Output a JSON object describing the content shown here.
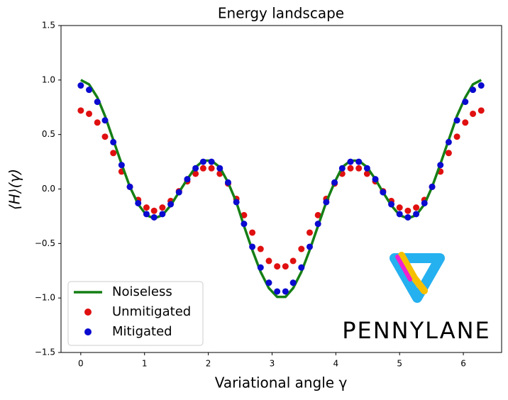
{
  "chart_data": {
    "type": "line",
    "title": "Energy landscape",
    "xlabel": "Variational angle γ",
    "ylabel": "⟨H⟩(γ)",
    "logo_text": "PENNYLANE",
    "legend": "lower left",
    "xlim": [
      -0.31,
      6.6
    ],
    "ylim": [
      -1.5,
      1.5
    ],
    "xticks": [
      0,
      1,
      2,
      3,
      4,
      5,
      6
    ],
    "yticks": [
      {
        "value": -1.5,
        "label": "−1.5"
      },
      {
        "value": -1.0,
        "label": "−1.0"
      },
      {
        "value": -0.5,
        "label": "−0.5"
      },
      {
        "value": 0,
        "label": "0.0"
      },
      {
        "value": 0.5,
        "label": "0.5"
      },
      {
        "value": 1.0,
        "label": "1.0"
      },
      {
        "value": 1.5,
        "label": "1.5"
      }
    ],
    "x": [
      0,
      0.13,
      0.26,
      0.38,
      0.51,
      0.64,
      0.77,
      0.9,
      1.03,
      1.15,
      1.28,
      1.41,
      1.54,
      1.67,
      1.8,
      1.92,
      2.05,
      2.18,
      2.31,
      2.44,
      2.56,
      2.69,
      2.82,
      2.95,
      3.08,
      3.21,
      3.33,
      3.46,
      3.59,
      3.72,
      3.85,
      3.98,
      4.1,
      4.23,
      4.36,
      4.49,
      4.62,
      4.74,
      4.87,
      5.0,
      5.13,
      5.26,
      5.39,
      5.51,
      5.64,
      5.77,
      5.9,
      6.03,
      6.15,
      6.28
    ],
    "series": [
      {
        "name": "Noiseless",
        "type": "line",
        "color": "#157f15",
        "values": [
          1.0,
          0.96,
          0.84,
          0.67,
          0.45,
          0.23,
          0.02,
          -0.14,
          -0.24,
          -0.27,
          -0.24,
          -0.15,
          -0.03,
          0.09,
          0.2,
          0.26,
          0.26,
          0.2,
          0.06,
          -0.12,
          -0.34,
          -0.56,
          -0.76,
          -0.91,
          -0.99,
          -0.99,
          -0.91,
          -0.76,
          -0.56,
          -0.34,
          -0.12,
          0.06,
          0.2,
          0.26,
          0.26,
          0.2,
          0.09,
          -0.03,
          -0.15,
          -0.24,
          -0.27,
          -0.24,
          -0.14,
          0.02,
          0.23,
          0.45,
          0.67,
          0.84,
          0.96,
          1.0
        ]
      },
      {
        "name": "Unmitigated",
        "type": "scatter",
        "color": "#e01010",
        "values": [
          0.72,
          0.69,
          0.61,
          0.48,
          0.33,
          0.16,
          0.02,
          -0.1,
          -0.17,
          -0.2,
          -0.17,
          -0.11,
          -0.02,
          0.07,
          0.14,
          0.19,
          0.19,
          0.14,
          0.05,
          -0.09,
          -0.24,
          -0.4,
          -0.55,
          -0.66,
          -0.71,
          -0.71,
          -0.66,
          -0.55,
          -0.4,
          -0.24,
          -0.09,
          0.05,
          0.14,
          0.19,
          0.19,
          0.14,
          0.07,
          -0.02,
          -0.11,
          -0.17,
          -0.2,
          -0.17,
          -0.1,
          0.02,
          0.16,
          0.33,
          0.48,
          0.61,
          0.69,
          0.72
        ]
      },
      {
        "name": "Mitigated",
        "type": "scatter",
        "color": "#0a0ad0",
        "values": [
          0.95,
          0.91,
          0.8,
          0.63,
          0.43,
          0.22,
          0.02,
          -0.13,
          -0.23,
          -0.26,
          -0.23,
          -0.14,
          -0.03,
          0.09,
          0.19,
          0.25,
          0.25,
          0.19,
          0.06,
          -0.12,
          -0.32,
          -0.53,
          -0.72,
          -0.86,
          -0.94,
          -0.94,
          -0.86,
          -0.72,
          -0.53,
          -0.32,
          -0.12,
          0.06,
          0.19,
          0.25,
          0.25,
          0.19,
          0.09,
          -0.03,
          -0.14,
          -0.23,
          -0.26,
          -0.23,
          -0.13,
          0.02,
          0.22,
          0.43,
          0.63,
          0.8,
          0.91,
          0.95
        ]
      }
    ]
  }
}
